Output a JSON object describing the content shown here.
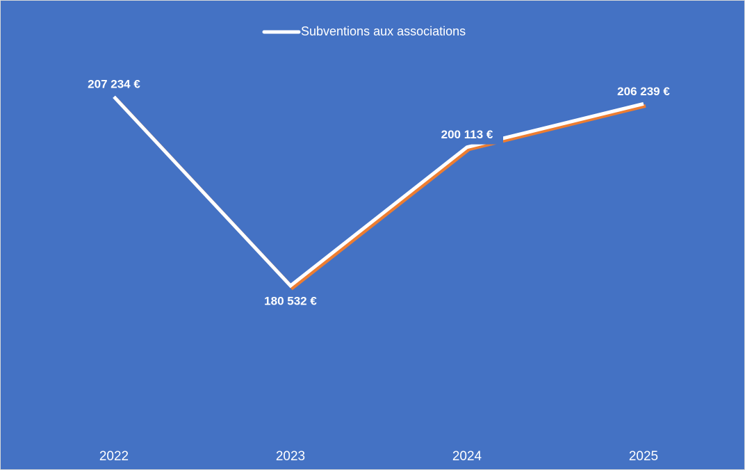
{
  "chart_data": {
    "type": "line",
    "categories": [
      "2022",
      "2023",
      "2024",
      "2025"
    ],
    "series": [
      {
        "name": "Subventions aux associations",
        "color": "#ffffff",
        "values": [
          207234,
          180532,
          200113,
          206239
        ],
        "value_labels": [
          "207 234 €",
          "180 532 €",
          "200 113 €",
          "206 239 €"
        ]
      }
    ],
    "shadow_color": "#ed7d31",
    "background": "#4472c4",
    "ylim": [
      160000,
      210000
    ],
    "legend": "top",
    "drop_lines": true
  }
}
